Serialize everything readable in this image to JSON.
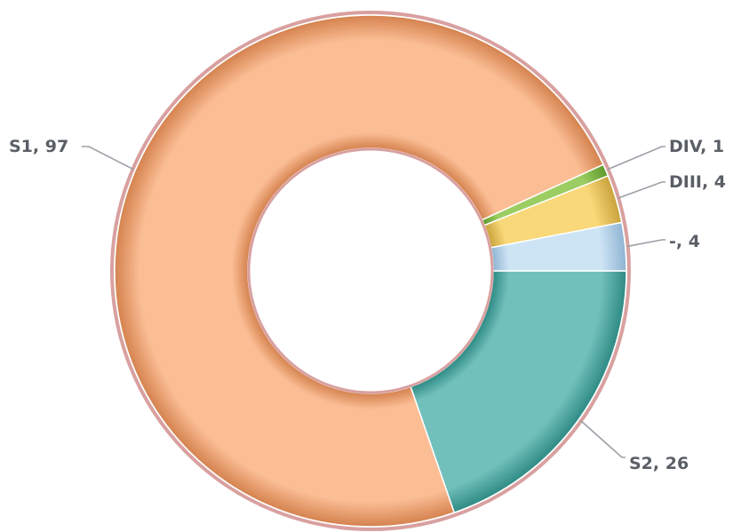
{
  "chart_data": {
    "type": "pie",
    "variant": "donut",
    "slices": [
      {
        "label": "S2",
        "value": 26,
        "display": "S2, 26",
        "color": "#72c0bb",
        "edge": "#2e8a84"
      },
      {
        "label": "S1",
        "value": 97,
        "display": "S1, 97",
        "color": "#fbbd94",
        "edge": "#d4824e"
      },
      {
        "label": "DIV",
        "value": 1,
        "display": "DIV, 1",
        "color": "#9ccd62",
        "edge": "#5e9a2c"
      },
      {
        "label": "DIII",
        "value": 4,
        "display": "DIII, 4",
        "color": "#f8d878",
        "edge": "#c9a23c"
      },
      {
        "label": "-",
        "value": 4,
        "display": "-, 4",
        "color": "#cde4f5",
        "edge": "#8fb4d2"
      }
    ],
    "outline_color": "#d9a0a0",
    "legend": "none",
    "data_labels": "outside with leader lines"
  }
}
